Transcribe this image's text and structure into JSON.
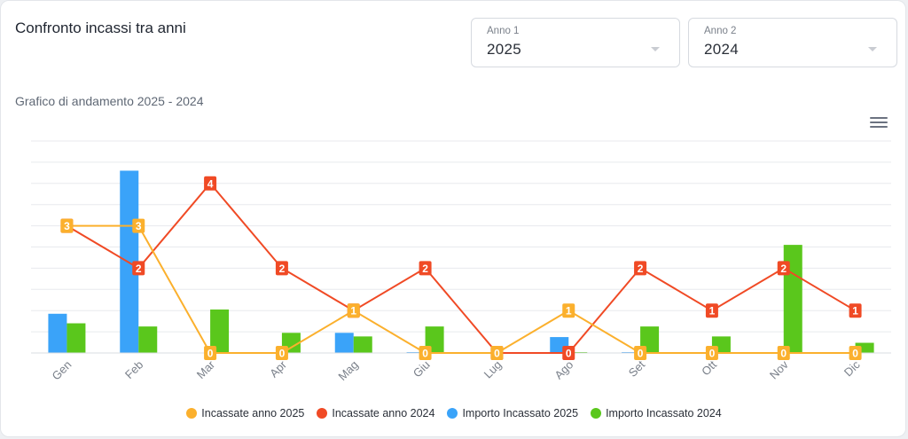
{
  "card": {
    "title": "Confronto incassi tra anni"
  },
  "selects": [
    {
      "label": "Anno 1",
      "value": "2025"
    },
    {
      "label": "Anno 2",
      "value": "2024"
    }
  ],
  "chart_subtitle": "Grafico di andamento 2025 - 2024",
  "menu_icon": "hamburger-menu-icon",
  "colors": {
    "incassate_2025": "#fbb02d",
    "incassate_2024": "#f04a25",
    "importo_2025": "#3aa3f9",
    "importo_2024": "#5ac71c",
    "grid": "#e8eaee",
    "tick": "#7a808a"
  },
  "chart_data": {
    "type": "bar+line",
    "categories": [
      "Gen",
      "Feb",
      "Mar",
      "Apr",
      "Mag",
      "Giu",
      "Lug",
      "Ago",
      "Set",
      "Ott",
      "Nov",
      "Dic"
    ],
    "grid": true,
    "legend_position": "bottom",
    "series": [
      {
        "name": "Incassate anno 2025",
        "type": "line",
        "values": [
          3,
          3,
          0,
          0,
          1,
          0,
          0,
          1,
          0,
          0,
          0,
          0
        ]
      },
      {
        "name": "Incassate anno 2024",
        "type": "line",
        "values": [
          3,
          2,
          4,
          2,
          1,
          2,
          0,
          0,
          2,
          1,
          2,
          1
        ]
      },
      {
        "name": "Importo Incassato 2025",
        "type": "bar",
        "values": [
          185,
          860,
          2,
          0,
          95,
          4,
          0,
          75,
          4,
          0,
          0,
          0
        ]
      },
      {
        "name": "Importo Incassato 2024",
        "type": "bar",
        "values": [
          140,
          125,
          205,
          95,
          78,
          125,
          0,
          4,
          125,
          78,
          510,
          48
        ]
      }
    ]
  },
  "legend": [
    {
      "label": "Incassate anno 2025",
      "color": "#fbb02d"
    },
    {
      "label": "Incassate anno 2024",
      "color": "#f04a25"
    },
    {
      "label": "Importo Incassato 2025",
      "color": "#3aa3f9"
    },
    {
      "label": "Importo Incassato 2024",
      "color": "#5ac71c"
    }
  ]
}
